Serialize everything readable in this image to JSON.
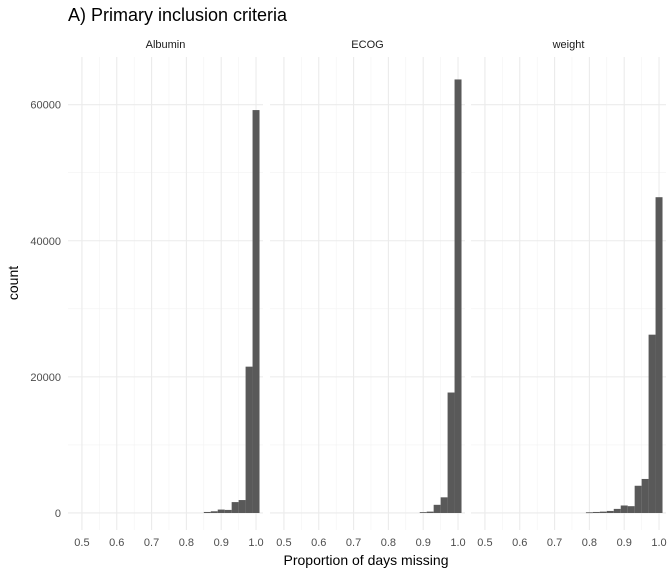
{
  "chart_data": {
    "type": "bar",
    "title": "A) Primary inclusion criteria",
    "xlabel": "Proportion of days missing",
    "ylabel": "count",
    "xlim": [
      0.46,
      1.02
    ],
    "ylim": [
      -2500,
      67000
    ],
    "x_ticks": [
      0.5,
      0.6,
      0.7,
      0.8,
      0.9,
      1.0
    ],
    "x_tick_labels": [
      "0.5",
      "0.6",
      "0.7",
      "0.8",
      "0.9",
      "1.0"
    ],
    "y_ticks": [
      0,
      20000,
      40000,
      60000
    ],
    "y_tick_labels": [
      "0",
      "20000",
      "40000",
      "60000"
    ],
    "grid": true,
    "bar_color": "#595959",
    "bin_width": 0.02,
    "panels": [
      {
        "label": "Albumin",
        "bins": [
          {
            "x": 0.86,
            "count": 150
          },
          {
            "x": 0.88,
            "count": 250
          },
          {
            "x": 0.9,
            "count": 500
          },
          {
            "x": 0.92,
            "count": 450
          },
          {
            "x": 0.94,
            "count": 1600
          },
          {
            "x": 0.96,
            "count": 1900
          },
          {
            "x": 0.98,
            "count": 21500
          },
          {
            "x": 1.0,
            "count": 59200
          }
        ]
      },
      {
        "label": "ECOG",
        "bins": [
          {
            "x": 0.9,
            "count": 120
          },
          {
            "x": 0.92,
            "count": 200
          },
          {
            "x": 0.94,
            "count": 1200
          },
          {
            "x": 0.96,
            "count": 2300
          },
          {
            "x": 0.98,
            "count": 17700
          },
          {
            "x": 1.0,
            "count": 63700
          }
        ]
      },
      {
        "label": "weight",
        "bins": [
          {
            "x": 0.8,
            "count": 100
          },
          {
            "x": 0.82,
            "count": 150
          },
          {
            "x": 0.84,
            "count": 200
          },
          {
            "x": 0.86,
            "count": 300
          },
          {
            "x": 0.88,
            "count": 600
          },
          {
            "x": 0.9,
            "count": 1100
          },
          {
            "x": 0.92,
            "count": 1000
          },
          {
            "x": 0.94,
            "count": 4000
          },
          {
            "x": 0.96,
            "count": 5000
          },
          {
            "x": 0.98,
            "count": 26200
          },
          {
            "x": 1.0,
            "count": 46400
          }
        ]
      }
    ]
  }
}
